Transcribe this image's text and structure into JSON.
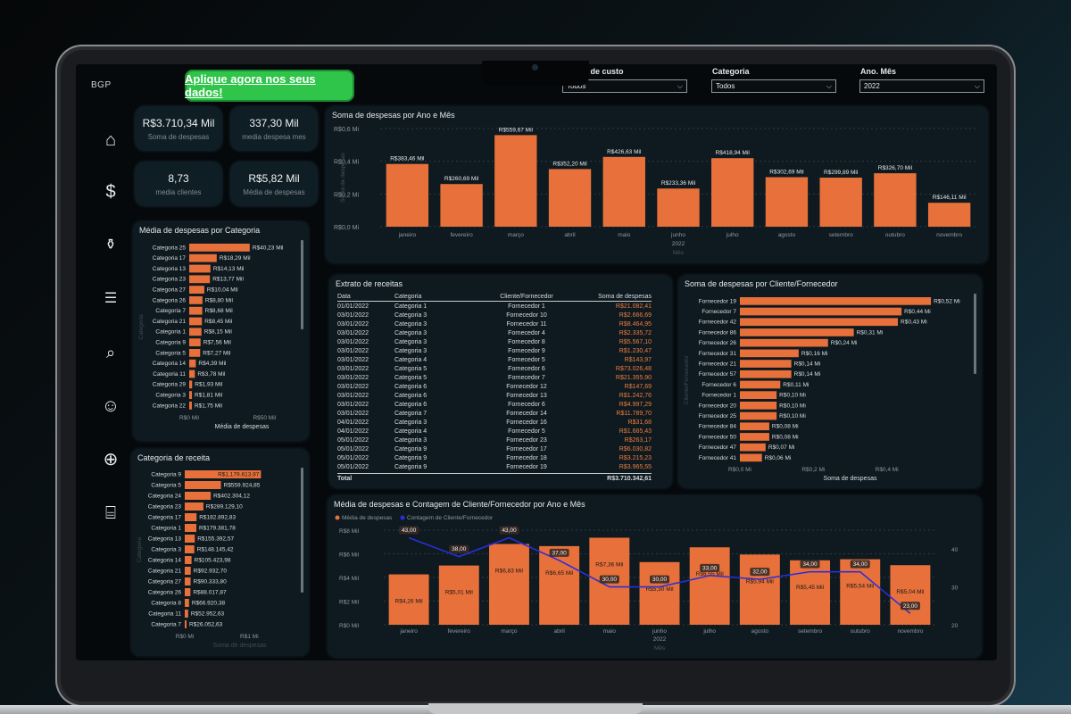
{
  "brand": {
    "logo": "BGP",
    "cta": "Aplique agora nos seus dados!"
  },
  "filters": [
    {
      "label": "Centro de custo",
      "value": "Todos"
    },
    {
      "label": "Categoria",
      "value": "Todos"
    },
    {
      "label": "Ano. Mês",
      "value": "2022"
    }
  ],
  "nav": [
    "home-icon",
    "money-icon",
    "money-bag-icon",
    "clipboard-icon",
    "search-icon",
    "person-icon",
    "globe-icon",
    "store-icon"
  ],
  "kpis": [
    {
      "value": "R$3.710,34 Mil",
      "label": "Soma de despesas"
    },
    {
      "value": "337,30 Mil",
      "label": "media despesa mes"
    },
    {
      "value": "8,73",
      "label": "media clientes"
    },
    {
      "value": "R$5,82 Mil",
      "label": "Média de despesas"
    }
  ],
  "colors": {
    "bar": "#e8703a",
    "line": "#2a2fd9",
    "panel": "#0e1a20"
  },
  "chart_data": [
    {
      "type": "bar",
      "title": "Soma de despesas por Ano e Mês",
      "categories": [
        "janeiro",
        "fevereiro",
        "março",
        "abril",
        "maio",
        "junho",
        "julho",
        "agosto",
        "setembro",
        "outubro",
        "novembro"
      ],
      "values": [
        383.46,
        260.69,
        559.67,
        352.2,
        426.63,
        233.36,
        418.94,
        302.69,
        299.89,
        326.7,
        146.11
      ],
      "value_labels": [
        "R$383,46 Mil",
        "R$260,69 Mil",
        "R$559,67 Mil",
        "R$352,20 Mil",
        "R$426,63 Mil",
        "R$233,36 Mil",
        "R$418,94 Mil",
        "R$302,69 Mil",
        "R$299,89 Mil",
        "R$326,70 Mil",
        "R$146,11 Mil"
      ],
      "yticks": [
        "R$0,0 Mi",
        "R$0,2 Mi",
        "R$0,4 Mi",
        "R$0,6 Mi"
      ],
      "ylim": [
        0,
        600
      ],
      "year_label": "2022",
      "xlabel": "Mês",
      "ylabel": "Soma de despesas"
    },
    {
      "type": "bar",
      "title": "Média de despesas por Categoria",
      "categories": [
        "Categoria 25",
        "Categoria 17",
        "Categoria 13",
        "Categoria 23",
        "Categoria 27",
        "Categoria 26",
        "Categoria 7",
        "Categoria 21",
        "Categoria 1",
        "Categoria 9",
        "Categoria 5",
        "Categoria 14",
        "Categoria 11",
        "Categoria 29",
        "Categoria 3",
        "Categoria 22"
      ],
      "values": [
        40.23,
        18.29,
        14.13,
        13.77,
        10.04,
        8.8,
        8.68,
        8.45,
        8.15,
        7.56,
        7.27,
        4.39,
        3.78,
        1.93,
        1.81,
        1.75
      ],
      "value_labels": [
        "R$40,23 Mil",
        "R$18,29 Mil",
        "R$14,13 Mil",
        "R$13,77 Mil",
        "R$10,04 Mil",
        "R$8,80 Mil",
        "R$8,68 Mil",
        "R$8,45 Mil",
        "R$8,15 Mil",
        "R$7,56 Mil",
        "R$7,27 Mil",
        "R$4,39 Mil",
        "R$3,78 Mil",
        "R$1,93 Mil",
        "R$1,81 Mil",
        "R$1,75 Mil"
      ],
      "xticks": [
        "R$0 Mil",
        "R$50 Mil"
      ],
      "xlim": [
        0,
        70
      ],
      "xlabel": "Média de despesas",
      "ylabel": "Categoria"
    },
    {
      "type": "bar",
      "title": "Categoria de receita",
      "categories": [
        "Categoria 9",
        "Categoria 5",
        "Categoria 24",
        "Categoria 23",
        "Categoria 17",
        "Categoria 1",
        "Categoria 13",
        "Categoria 3",
        "Categoria 14",
        "Categoria 21",
        "Categoria 27",
        "Categoria 26",
        "Categoria 8",
        "Categoria 11",
        "Categoria 7"
      ],
      "values": [
        1179.61,
        559.92,
        402.3,
        289.13,
        182.89,
        179.38,
        155.39,
        148.14,
        105.42,
        92.93,
        90.33,
        88.02,
        66.92,
        52.95,
        26.05
      ],
      "value_labels": [
        "R$1.179.613,97",
        "R$559.924,85",
        "R$402.304,12",
        "R$289.129,10",
        "R$182.892,83",
        "R$179.381,78",
        "R$155.392,57",
        "R$148.145,42",
        "R$105.423,98",
        "R$92.932,70",
        "R$90.333,80",
        "R$88.017,87",
        "R$66.920,38",
        "R$52.952,63",
        "R$26.052,63"
      ],
      "xticks": [
        "R$0 Mi",
        "R$1 Mi"
      ],
      "xlim": [
        0,
        1700
      ],
      "xlabel": "Soma de despesas",
      "ylabel": "Categoria"
    },
    {
      "type": "table",
      "title": "Extrato de receitas",
      "columns": [
        "Data",
        "Categoria",
        "Cliente/Fornecedor",
        "Soma de despesas"
      ],
      "rows": [
        [
          "01/01/2022",
          "Categoria 1",
          "Fornecedor 1",
          "R$21.082,41"
        ],
        [
          "03/01/2022",
          "Categoria 3",
          "Fornecedor 10",
          "R$2.666,69"
        ],
        [
          "03/01/2022",
          "Categoria 3",
          "Fornecedor 11",
          "R$8.464,95"
        ],
        [
          "03/01/2022",
          "Categoria 3",
          "Fornecedor 4",
          "R$2.335,72"
        ],
        [
          "03/01/2022",
          "Categoria 3",
          "Fornecedor 8",
          "R$5.567,10"
        ],
        [
          "03/01/2022",
          "Categoria 3",
          "Fornecedor 9",
          "R$1.230,47"
        ],
        [
          "03/01/2022",
          "Categoria 4",
          "Fornecedor 5",
          "R$143,97"
        ],
        [
          "03/01/2022",
          "Categoria 5",
          "Fornecedor 6",
          "R$73.026,48"
        ],
        [
          "03/01/2022",
          "Categoria 5",
          "Fornecedor 7",
          "R$21.355,90"
        ],
        [
          "03/01/2022",
          "Categoria 6",
          "Fornecedor 12",
          "R$147,69"
        ],
        [
          "03/01/2022",
          "Categoria 6",
          "Fornecedor 13",
          "R$1.242,76"
        ],
        [
          "03/01/2022",
          "Categoria 6",
          "Fornecedor 6",
          "R$4.997,29"
        ],
        [
          "03/01/2022",
          "Categoria 7",
          "Fornecedor 14",
          "R$11.789,70"
        ],
        [
          "04/01/2022",
          "Categoria 3",
          "Fornecedor 16",
          "R$31,68"
        ],
        [
          "04/01/2022",
          "Categoria 4",
          "Fornecedor 5",
          "R$1.665,43"
        ],
        [
          "05/01/2022",
          "Categoria 3",
          "Fornecedor 23",
          "R$263,17"
        ],
        [
          "05/01/2022",
          "Categoria 9",
          "Fornecedor 17",
          "R$6.030,82"
        ],
        [
          "05/01/2022",
          "Categoria 9",
          "Fornecedor 18",
          "R$3.215,23"
        ],
        [
          "05/01/2022",
          "Categoria 9",
          "Fornecedor 19",
          "R$3.965,55"
        ]
      ],
      "total_label": "Total",
      "total_value": "R$3.710.342,61"
    },
    {
      "type": "bar",
      "title": "Soma de despesas por Cliente/Fornecedor",
      "categories": [
        "Fornecedor 19",
        "Fornecedor 7",
        "Fornecedor 42",
        "Fornecedor 86",
        "Fornecedor 26",
        "Fornecedor 31",
        "Fornecedor 21",
        "Fornecedor 57",
        "Fornecedor 6",
        "Fornecedor 1",
        "Fornecedor 20",
        "Fornecedor 25",
        "Fornecedor 84",
        "Fornecedor 50",
        "Fornecedor 47",
        "Fornecedor 41"
      ],
      "values": [
        0.52,
        0.44,
        0.43,
        0.31,
        0.24,
        0.16,
        0.14,
        0.14,
        0.11,
        0.1,
        0.1,
        0.1,
        0.08,
        0.08,
        0.07,
        0.06
      ],
      "value_labels": [
        "R$0,52 Mi",
        "R$0,44 Mi",
        "R$0,43 Mi",
        "R$0,31 Mi",
        "R$0,24 Mi",
        "R$0,16 Mi",
        "R$0,14 Mi",
        "R$0,14 Mi",
        "R$0,11 Mi",
        "R$0,10 Mi",
        "R$0,10 Mi",
        "R$0,10 Mi",
        "R$0,08 Mi",
        "R$0,08 Mi",
        "R$0,07 Mi",
        "R$0,06 Mi"
      ],
      "xticks": [
        "R$0,0 Mi",
        "R$0,2 Mi",
        "R$0,4 Mi"
      ],
      "xlim": [
        0,
        0.6
      ],
      "xlabel": "Soma de despesas",
      "ylabel": "Cliente/Fornecedor"
    },
    {
      "type": "bar",
      "title": "Média de despesas e Contagem de Cliente/Fornecedor por Ano e Mês",
      "legend": [
        "Média de despesas",
        "Contagem de Cliente/Fornecedor"
      ],
      "categories": [
        "janeiro",
        "fevereiro",
        "março",
        "abril",
        "maio",
        "junho",
        "julho",
        "agosto",
        "setembro",
        "outubro",
        "novembro"
      ],
      "series": [
        {
          "name": "Média de despesas",
          "values": [
            4.26,
            5.01,
            6.83,
            6.65,
            7.36,
            5.3,
            6.55,
            5.94,
            5.45,
            5.54,
            5.04
          ],
          "labels": [
            "R$4,26 Mil",
            "R$5,01 Mil",
            "R$6,83 Mil",
            "R$6,65 Mil",
            "R$7,36 Mil",
            "R$5,30 Mil",
            "R$6,55 Mil",
            "R$5,94 Mil",
            "R$5,45 Mil",
            "R$5,54 Mil",
            "R$5,04 Mil"
          ]
        },
        {
          "name": "Contagem de Cliente/Fornecedor",
          "values": [
            43,
            38,
            43,
            37,
            30,
            30,
            33,
            32,
            34,
            34,
            23
          ],
          "labels": [
            "43,00",
            "38,00",
            "43,00",
            "37,00",
            "30,00",
            "30,00",
            "33,00",
            "32,00",
            "34,00",
            "34,00",
            "23,00"
          ]
        }
      ],
      "yticks_left": [
        "R$0 Mil",
        "R$2 Mil",
        "R$4 Mil",
        "R$6 Mil",
        "R$8 Mil"
      ],
      "yticks_right": [
        "20",
        "30",
        "40"
      ],
      "ylim_left": [
        0,
        8
      ],
      "ylim_right": [
        20,
        45
      ],
      "year_label": "2022",
      "xlabel": "Mês"
    }
  ]
}
